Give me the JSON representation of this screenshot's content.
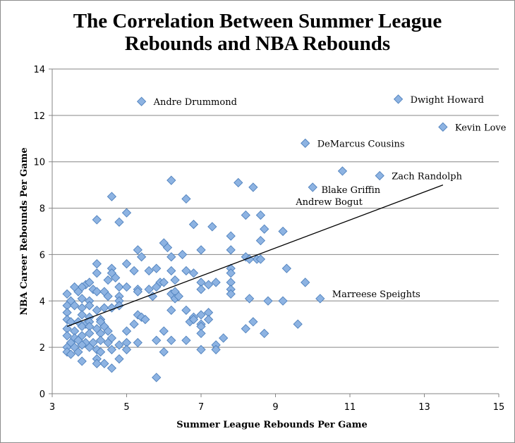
{
  "chart_data": {
    "type": "scatter",
    "title_line1": "The Correlation Between Summer League",
    "title_line2": "Rebounds and NBA Rebounds",
    "xlabel": "Summer League Rebounds Per Game",
    "ylabel": "NBA Career Rebounds Per Game",
    "xlim": [
      3,
      15
    ],
    "ylim": [
      0,
      14
    ],
    "xticks": [
      3,
      5,
      7,
      9,
      11,
      13,
      15
    ],
    "yticks": [
      0,
      2,
      4,
      6,
      8,
      10,
      12,
      14
    ],
    "grid": "horizontal",
    "marker_color": "#8db3e2",
    "marker_edge_color": "#4f81bd",
    "trendline": {
      "x": [
        3.4,
        13.5
      ],
      "y": [
        2.9,
        9.0
      ]
    },
    "annotations": [
      {
        "text": "Andre Drummond",
        "x": 5.4,
        "y": 12.6
      },
      {
        "text": "Dwight Howard",
        "x": 12.3,
        "y": 12.7
      },
      {
        "text": "Kevin Love",
        "x": 13.5,
        "y": 11.5
      },
      {
        "text": "DeMarcus Cousins",
        "x": 9.8,
        "y": 10.8
      },
      {
        "text": "Blake Griffin",
        "x": 10.8,
        "y": 9.6
      },
      {
        "text": "Zach Randolph",
        "x": 11.8,
        "y": 9.4
      },
      {
        "text": "Andrew Bogut",
        "x": 10.0,
        "y": 8.9
      },
      {
        "text": "Marreese Speights",
        "x": 10.2,
        "y": 4.1
      }
    ],
    "points": [
      [
        5.4,
        12.6
      ],
      [
        12.3,
        12.7
      ],
      [
        13.5,
        11.5
      ],
      [
        9.8,
        10.8
      ],
      [
        10.8,
        9.6
      ],
      [
        11.8,
        9.4
      ],
      [
        10.0,
        8.9
      ],
      [
        6.2,
        9.2
      ],
      [
        8.0,
        9.1
      ],
      [
        8.4,
        8.9
      ],
      [
        4.6,
        8.5
      ],
      [
        6.6,
        8.4
      ],
      [
        5.0,
        7.8
      ],
      [
        8.2,
        7.7
      ],
      [
        8.6,
        7.7
      ],
      [
        4.2,
        7.5
      ],
      [
        4.8,
        7.4
      ],
      [
        6.8,
        7.3
      ],
      [
        7.3,
        7.2
      ],
      [
        8.7,
        7.1
      ],
      [
        9.2,
        7.0
      ],
      [
        7.8,
        6.8
      ],
      [
        8.6,
        6.6
      ],
      [
        6.0,
        6.5
      ],
      [
        6.1,
        6.3
      ],
      [
        5.3,
        6.2
      ],
      [
        7.0,
        6.2
      ],
      [
        7.8,
        6.2
      ],
      [
        6.5,
        6.0
      ],
      [
        5.4,
        5.9
      ],
      [
        8.2,
        5.9
      ],
      [
        6.2,
        5.9
      ],
      [
        8.5,
        5.8
      ],
      [
        8.3,
        5.8
      ],
      [
        8.6,
        5.8
      ],
      [
        4.2,
        5.6
      ],
      [
        5.0,
        5.6
      ],
      [
        4.6,
        5.4
      ],
      [
        5.2,
        5.3
      ],
      [
        5.6,
        5.3
      ],
      [
        6.2,
        5.3
      ],
      [
        6.6,
        5.3
      ],
      [
        6.8,
        5.2
      ],
      [
        7.8,
        5.4
      ],
      [
        9.3,
        5.4
      ],
      [
        4.2,
        5.2
      ],
      [
        4.6,
        5.2
      ],
      [
        5.8,
        5.4
      ],
      [
        7.8,
        5.2
      ],
      [
        6.3,
        4.9
      ],
      [
        5.9,
        4.8
      ],
      [
        4.5,
        4.9
      ],
      [
        4.7,
        5.0
      ],
      [
        6.0,
        4.8
      ],
      [
        7.0,
        4.8
      ],
      [
        7.2,
        4.7
      ],
      [
        7.4,
        4.8
      ],
      [
        7.8,
        4.8
      ],
      [
        9.8,
        4.8
      ],
      [
        3.9,
        4.7
      ],
      [
        4.0,
        4.8
      ],
      [
        3.8,
        4.6
      ],
      [
        3.6,
        4.6
      ],
      [
        3.4,
        4.3
      ],
      [
        3.7,
        4.4
      ],
      [
        4.1,
        4.5
      ],
      [
        4.8,
        4.6
      ],
      [
        5.0,
        4.6
      ],
      [
        5.3,
        4.5
      ],
      [
        5.6,
        4.5
      ],
      [
        5.8,
        4.6
      ],
      [
        7.0,
        4.5
      ],
      [
        7.8,
        4.5
      ],
      [
        3.5,
        4.0
      ],
      [
        4.2,
        4.4
      ],
      [
        4.4,
        4.4
      ],
      [
        4.5,
        4.2
      ],
      [
        4.8,
        4.2
      ],
      [
        5.3,
        4.4
      ],
      [
        5.7,
        4.2
      ],
      [
        6.2,
        4.3
      ],
      [
        6.3,
        4.4
      ],
      [
        6.3,
        4.1
      ],
      [
        6.4,
        4.2
      ],
      [
        7.8,
        4.3
      ],
      [
        3.8,
        4.1
      ],
      [
        4.0,
        4.0
      ],
      [
        4.8,
        4.0
      ],
      [
        8.3,
        4.1
      ],
      [
        8.8,
        4.0
      ],
      [
        9.2,
        4.0
      ],
      [
        10.2,
        4.1
      ],
      [
        3.4,
        3.8
      ],
      [
        3.6,
        3.8
      ],
      [
        3.8,
        3.7
      ],
      [
        4.0,
        3.8
      ],
      [
        4.2,
        3.6
      ],
      [
        4.4,
        3.7
      ],
      [
        4.6,
        3.7
      ],
      [
        4.8,
        3.8
      ],
      [
        6.2,
        3.6
      ],
      [
        6.6,
        3.6
      ],
      [
        3.4,
        3.5
      ],
      [
        3.8,
        3.4
      ],
      [
        4.0,
        3.3
      ],
      [
        4.3,
        3.2
      ],
      [
        5.3,
        3.4
      ],
      [
        5.4,
        3.3
      ],
      [
        7.2,
        3.5
      ],
      [
        7.0,
        3.4
      ],
      [
        6.8,
        3.3
      ],
      [
        3.4,
        3.2
      ],
      [
        3.5,
        3.1
      ],
      [
        3.7,
        3.1
      ],
      [
        3.9,
        3.0
      ],
      [
        4.0,
        3.1
      ],
      [
        4.3,
        3.1
      ],
      [
        4.4,
        2.9
      ],
      [
        5.2,
        3.0
      ],
      [
        5.5,
        3.2
      ],
      [
        6.7,
        3.1
      ],
      [
        6.8,
        3.2
      ],
      [
        7.0,
        3.0
      ],
      [
        7.2,
        3.2
      ],
      [
        8.4,
        3.1
      ],
      [
        9.6,
        3.0
      ],
      [
        3.4,
        2.8
      ],
      [
        3.6,
        2.7
      ],
      [
        3.8,
        2.9
      ],
      [
        4.0,
        2.9
      ],
      [
        4.2,
        2.8
      ],
      [
        4.5,
        2.7
      ],
      [
        5.0,
        2.7
      ],
      [
        6.0,
        2.7
      ],
      [
        7.0,
        2.9
      ],
      [
        8.2,
        2.8
      ],
      [
        3.4,
        2.5
      ],
      [
        3.6,
        2.4
      ],
      [
        3.8,
        2.5
      ],
      [
        4.0,
        2.6
      ],
      [
        4.3,
        2.6
      ],
      [
        4.6,
        2.4
      ],
      [
        7.0,
        2.6
      ],
      [
        8.7,
        2.6
      ],
      [
        3.5,
        2.2
      ],
      [
        3.7,
        2.3
      ],
      [
        3.9,
        2.2
      ],
      [
        4.1,
        2.2
      ],
      [
        4.3,
        2.3
      ],
      [
        4.5,
        2.2
      ],
      [
        4.8,
        2.1
      ],
      [
        5.0,
        2.2
      ],
      [
        5.3,
        2.2
      ],
      [
        5.8,
        2.3
      ],
      [
        6.2,
        2.3
      ],
      [
        6.6,
        2.3
      ],
      [
        7.6,
        2.4
      ],
      [
        3.4,
        2.0
      ],
      [
        3.6,
        2.0
      ],
      [
        3.8,
        2.1
      ],
      [
        4.0,
        2.0
      ],
      [
        4.2,
        1.9
      ],
      [
        4.6,
        1.9
      ],
      [
        5.0,
        1.9
      ],
      [
        7.0,
        1.9
      ],
      [
        7.4,
        2.1
      ],
      [
        7.4,
        1.9
      ],
      [
        3.4,
        1.8
      ],
      [
        3.5,
        1.7
      ],
      [
        3.7,
        1.8
      ],
      [
        4.3,
        1.8
      ],
      [
        6.0,
        1.8
      ],
      [
        3.8,
        1.4
      ],
      [
        4.2,
        1.5
      ],
      [
        4.4,
        1.3
      ],
      [
        4.2,
        1.3
      ],
      [
        4.8,
        1.5
      ],
      [
        4.6,
        1.1
      ],
      [
        5.8,
        0.7
      ]
    ]
  }
}
